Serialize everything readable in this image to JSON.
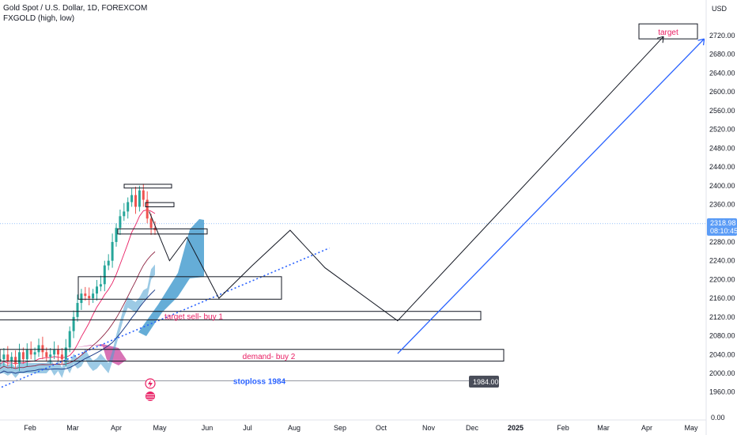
{
  "header": {
    "symbol_title": "Gold Spot / U.S. Dollar, 1D, FOREXCOM",
    "indicator": "FXGOLD (high, low)"
  },
  "axis": {
    "currency": "USD",
    "current_price": "2318.98",
    "countdown": "08:10:45",
    "stop_price": "1984.00",
    "zero_label": "0.00"
  },
  "colors": {
    "candle_up": "#26a69a",
    "candle_down": "#ef5350",
    "cloud": "#4a9fd0",
    "magenta_cloud": "#d05aa8",
    "trend_blue": "#2962ff",
    "path_black": "#131722",
    "label_pink": "#e91e63"
  },
  "chart_data": {
    "type": "candlestick-annotated",
    "y_ticks": [
      1960,
      2000,
      2040,
      2080,
      2120,
      2160,
      2200,
      2240,
      2280,
      2320,
      2360,
      2400,
      2440,
      2480,
      2520,
      2560,
      2600,
      2640,
      2680,
      2720
    ],
    "x_ticks": [
      "Feb",
      "Mar",
      "Apr",
      "May",
      "Jun",
      "Jul",
      "Aug",
      "Sep",
      "Oct",
      "Nov",
      "Dec",
      "2025",
      "Feb",
      "Mar",
      "Apr",
      "May"
    ],
    "ylim": [
      1940,
      2750
    ],
    "current_price": 2318.98,
    "zones": [
      {
        "label": "target",
        "low": 2713,
        "high": 2745
      },
      {
        "label": "target sell- buy 1",
        "low": 2114,
        "high": 2132
      },
      {
        "label": "demand- buy 2",
        "low": 2026,
        "high": 2051
      },
      {
        "label": "",
        "low": 2158,
        "high": 2206
      },
      {
        "label": "",
        "low": 2297,
        "high": 2308
      },
      {
        "label": "",
        "low": 2395,
        "high": 2403
      },
      {
        "label": "",
        "low": 2355,
        "high": 2364
      }
    ],
    "stoploss": {
      "label": "stoploss 1984",
      "price": 1984
    },
    "close_approx": [
      2030,
      2040,
      2025,
      2035,
      2020,
      2045,
      2030,
      2050,
      2040,
      2045,
      2060,
      2045,
      2035,
      2040,
      2050,
      2040,
      2030,
      2055,
      2090,
      2120,
      2150,
      2170,
      2165,
      2160,
      2170,
      2185,
      2190,
      2230,
      2240,
      2280,
      2310,
      2335,
      2345,
      2365,
      2380,
      2355,
      2390,
      2370,
      2330,
      2310,
      2305
    ],
    "projected_path": [
      {
        "date": "2024-04-23",
        "price": 2345
      },
      {
        "date": "2024-05-07",
        "price": 2240
      },
      {
        "date": "2024-05-19",
        "price": 2290
      },
      {
        "date": "2024-06-10",
        "price": 2160
      },
      {
        "date": "2024-07-03",
        "price": 2230
      },
      {
        "date": "2024-07-29",
        "price": 2305
      },
      {
        "date": "2024-08-22",
        "price": 2225
      },
      {
        "date": "2024-10-11",
        "price": 2112
      },
      {
        "date": "2025-04-12",
        "price": 2718
      }
    ],
    "blue_projection": [
      {
        "date": "2024-10-11",
        "price": 2042
      },
      {
        "date": "2025-05-10",
        "price": 2713
      }
    ],
    "dotted_trendline": [
      {
        "date": "2024-01-10",
        "price": 1975
      },
      {
        "date": "2024-08-25",
        "price": 2267
      }
    ]
  }
}
